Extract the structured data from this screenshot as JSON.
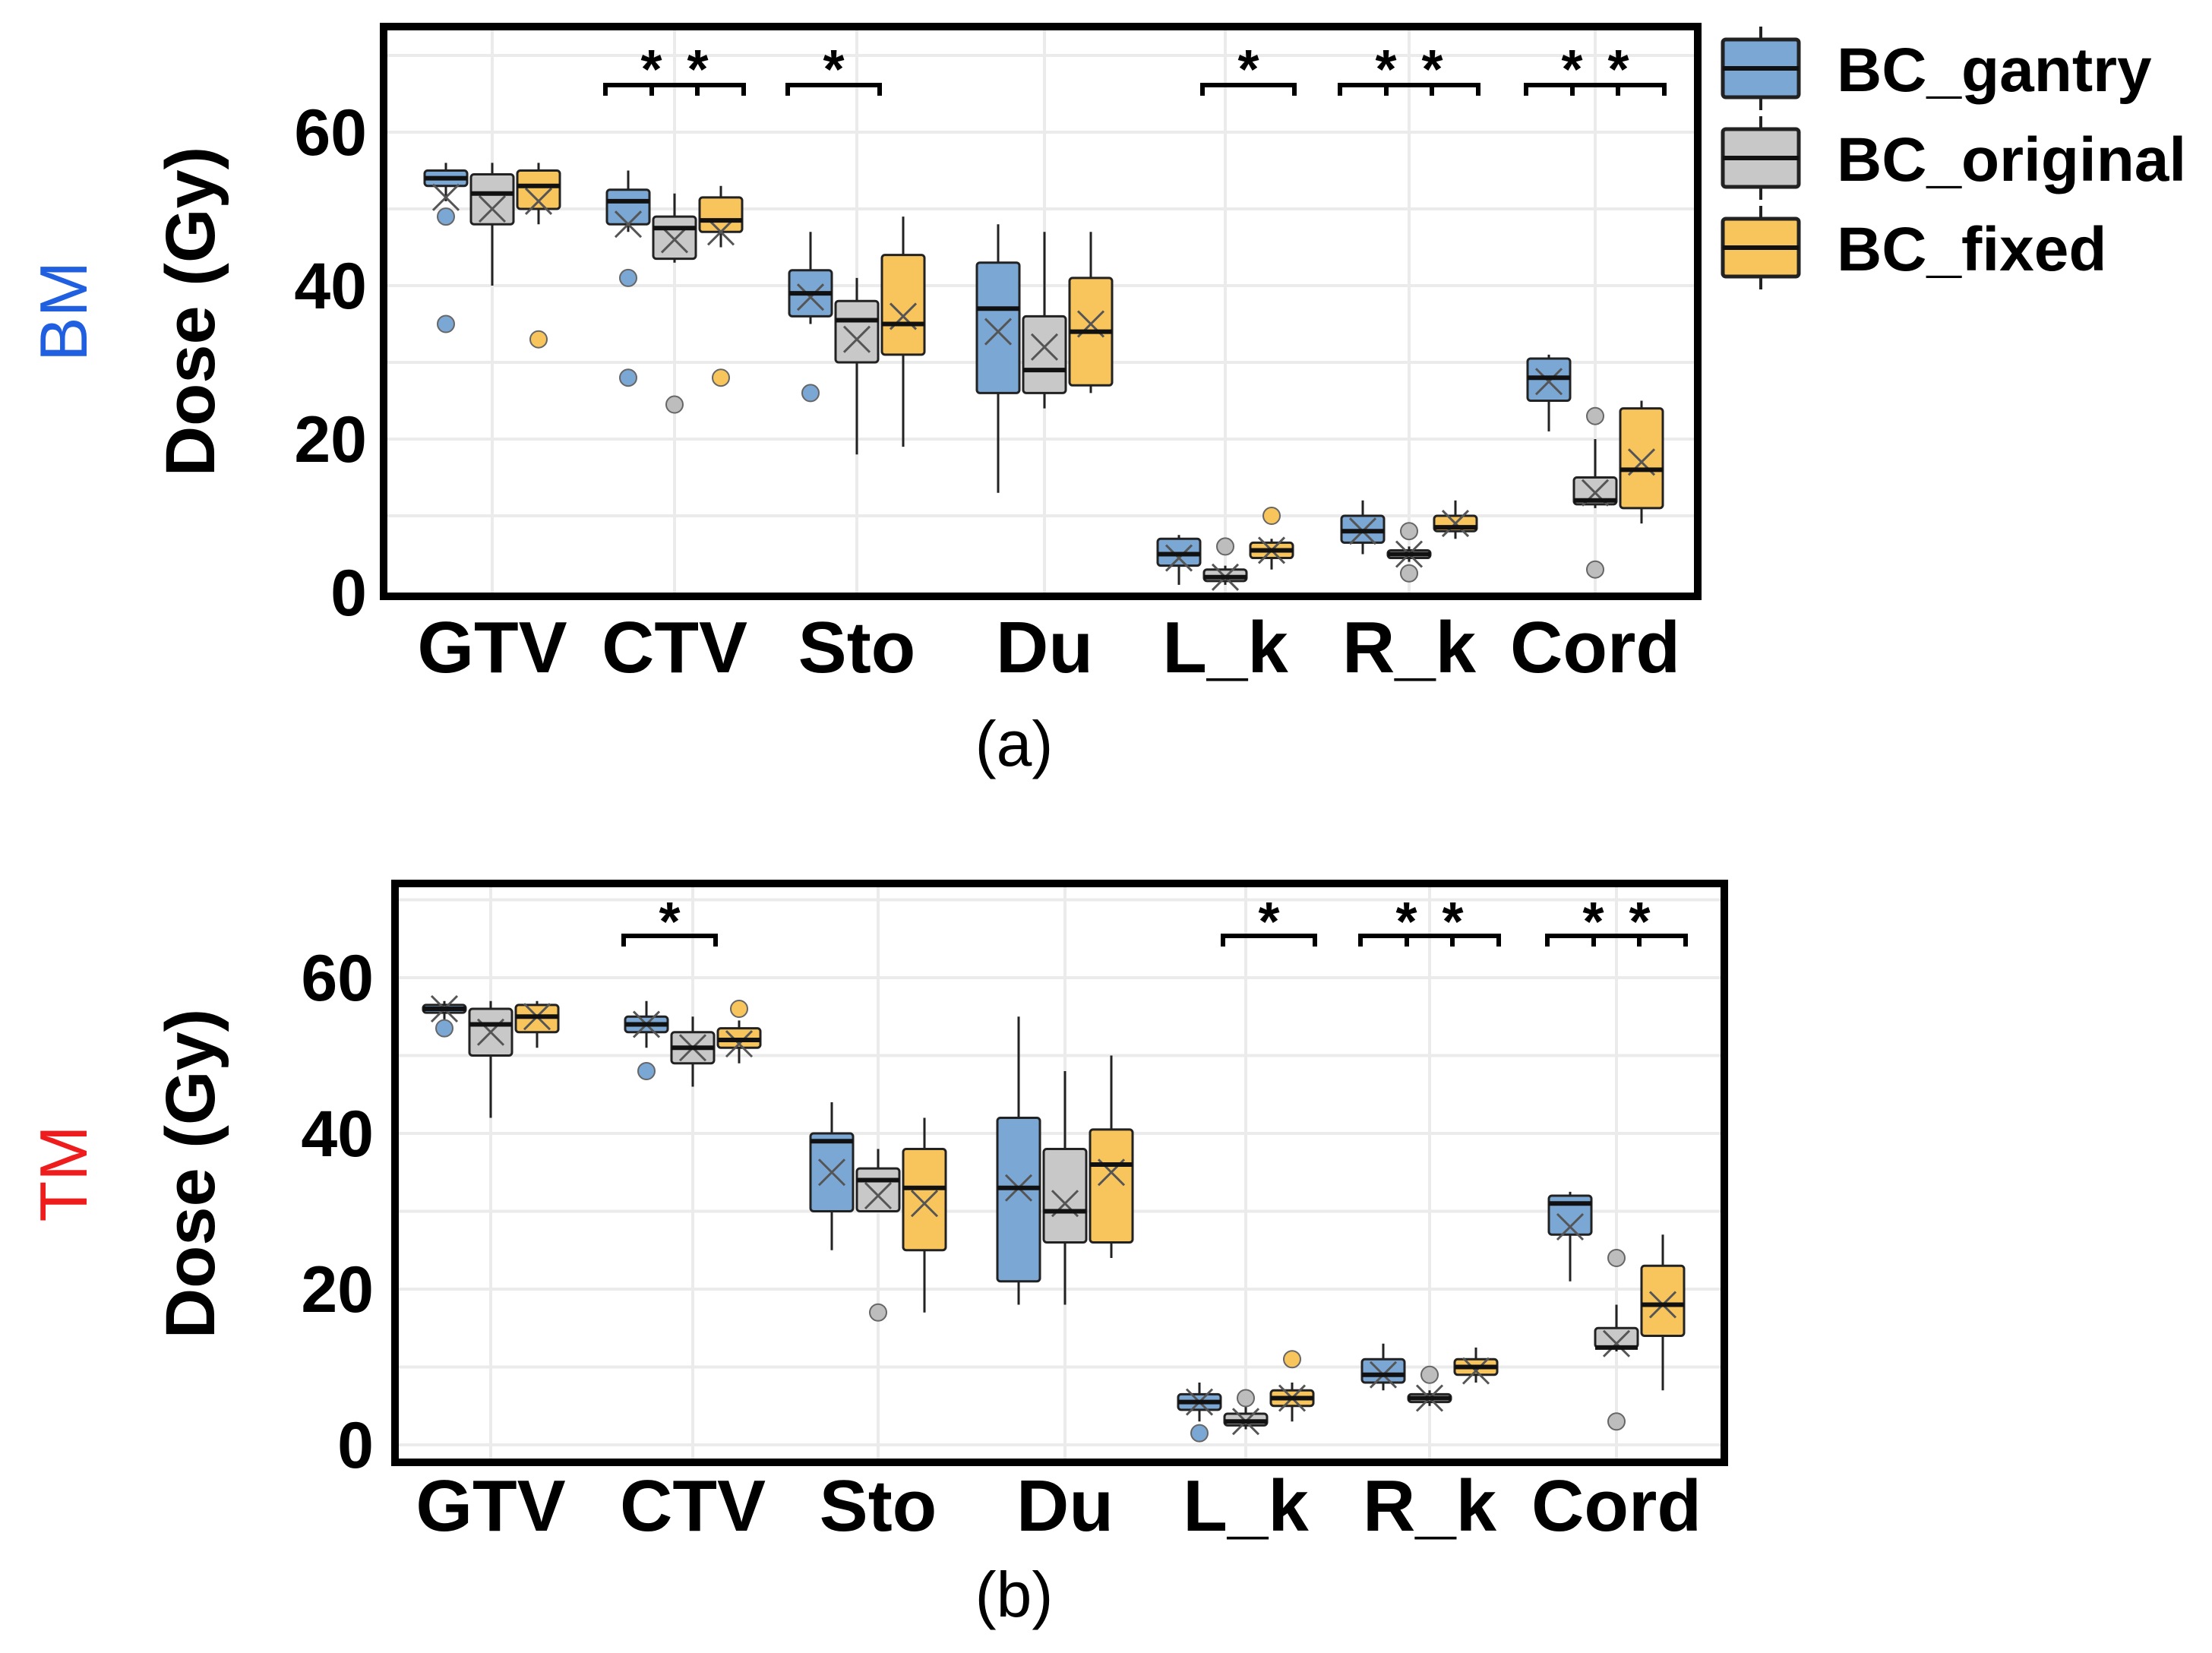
{
  "legend": {
    "items": [
      {
        "label": "BC_gantry",
        "color": "#7ba7d4"
      },
      {
        "label": "BC_original",
        "color": "#c8c8c8"
      },
      {
        "label": "BC_fixed",
        "color": "#f8c45c"
      }
    ]
  },
  "chart_data": [
    {
      "type": "box",
      "panel_label": "(a)",
      "row_label": "BM",
      "row_label_color": "#1f5fe0",
      "ylabel": "Dose (Gy)",
      "ylim": [
        0,
        72
      ],
      "yticks": [
        0,
        20,
        40,
        60
      ],
      "categories": [
        "GTV",
        "CTV",
        "Sto",
        "Du",
        "L_k",
        "R_k",
        "Cord"
      ],
      "series_names": [
        "BC_gantry",
        "BC_original",
        "BC_fixed"
      ],
      "boxes": [
        [
          {
            "min": 51,
            "q1": 53,
            "median": 54,
            "q3": 55,
            "max": 56,
            "mean": 51.5,
            "outliers": [
              49,
              35
            ]
          },
          {
            "min": 40,
            "q1": 48,
            "median": 52,
            "q3": 54.5,
            "max": 56,
            "mean": 50,
            "outliers": []
          },
          {
            "min": 48,
            "q1": 50,
            "median": 53,
            "q3": 55,
            "max": 56,
            "mean": 51,
            "outliers": [
              33
            ]
          }
        ],
        [
          {
            "min": 47,
            "q1": 48,
            "median": 51,
            "q3": 52.5,
            "max": 55,
            "mean": 48,
            "outliers": [
              41,
              28
            ]
          },
          {
            "min": 43,
            "q1": 43.5,
            "median": 47.5,
            "q3": 49,
            "max": 52,
            "mean": 46,
            "outliers": [
              24.5
            ]
          },
          {
            "min": 45,
            "q1": 47,
            "median": 48.5,
            "q3": 51.5,
            "max": 53,
            "mean": 47,
            "outliers": [
              28
            ]
          }
        ],
        [
          {
            "min": 35,
            "q1": 36,
            "median": 39,
            "q3": 42,
            "max": 47,
            "mean": 38.5,
            "outliers": [
              26
            ]
          },
          {
            "min": 18,
            "q1": 30,
            "median": 35.5,
            "q3": 38,
            "max": 41,
            "mean": 33,
            "outliers": []
          },
          {
            "min": 19,
            "q1": 31,
            "median": 35,
            "q3": 44,
            "max": 49,
            "mean": 36,
            "outliers": []
          }
        ],
        [
          {
            "min": 13,
            "q1": 26,
            "median": 37,
            "q3": 43,
            "max": 48,
            "mean": 34,
            "outliers": []
          },
          {
            "min": 24,
            "q1": 26,
            "median": 29,
            "q3": 36,
            "max": 47,
            "mean": 32,
            "outliers": []
          },
          {
            "min": 26,
            "q1": 27,
            "median": 34,
            "q3": 41,
            "max": 47,
            "mean": 35,
            "outliers": []
          }
        ],
        [
          {
            "min": 1,
            "q1": 3.5,
            "median": 5,
            "q3": 7,
            "max": 7.5,
            "mean": 4.5,
            "outliers": []
          },
          {
            "min": 1,
            "q1": 1.5,
            "median": 2,
            "q3": 3,
            "max": 3.5,
            "mean": 2,
            "outliers": [
              6
            ]
          },
          {
            "min": 3,
            "q1": 4.5,
            "median": 5.5,
            "q3": 6.5,
            "max": 7,
            "mean": 5.5,
            "outliers": [
              10
            ]
          }
        ],
        [
          {
            "min": 5,
            "q1": 6.5,
            "median": 8,
            "q3": 10,
            "max": 12,
            "mean": 8,
            "outliers": []
          },
          {
            "min": 4,
            "q1": 4.5,
            "median": 5,
            "q3": 5.5,
            "max": 6,
            "mean": 5,
            "outliers": [
              8,
              2.5
            ]
          },
          {
            "min": 7,
            "q1": 8,
            "median": 8.5,
            "q3": 10,
            "max": 12,
            "mean": 9,
            "outliers": []
          }
        ],
        [
          {
            "min": 21,
            "q1": 25,
            "median": 28,
            "q3": 30.5,
            "max": 31,
            "mean": 27.5,
            "outliers": []
          },
          {
            "min": 11,
            "q1": 11.5,
            "median": 12,
            "q3": 15,
            "max": 20,
            "mean": 13,
            "outliers": [
              23,
              3
            ]
          },
          {
            "min": 9,
            "q1": 11,
            "median": 16,
            "q3": 24,
            "max": 25,
            "mean": 17,
            "outliers": []
          }
        ]
      ],
      "significance": [
        {
          "category": "CTV",
          "pair": [
            0,
            1
          ],
          "label": "*"
        },
        {
          "category": "CTV",
          "pair": [
            1,
            2
          ],
          "label": "*"
        },
        {
          "category": "Sto",
          "pair": [
            0,
            1
          ],
          "label": "*"
        },
        {
          "category": "L_k",
          "pair": [
            1,
            2
          ],
          "label": "*"
        },
        {
          "category": "R_k",
          "pair": [
            0,
            1
          ],
          "label": "*"
        },
        {
          "category": "R_k",
          "pair": [
            1,
            2
          ],
          "label": "*"
        },
        {
          "category": "Cord",
          "pair": [
            0,
            1
          ],
          "label": "*"
        },
        {
          "category": "Cord",
          "pair": [
            1,
            2
          ],
          "label": "*"
        }
      ]
    },
    {
      "type": "box",
      "panel_label": "(b)",
      "row_label": "TM",
      "row_label_color": "#ee1c1c",
      "ylabel": "Dose (Gy)",
      "ylim": [
        0,
        72
      ],
      "yticks": [
        0,
        20,
        40,
        60
      ],
      "categories": [
        "GTV",
        "CTV",
        "Sto",
        "Du",
        "L_k",
        "R_k",
        "Cord"
      ],
      "series_names": [
        "BC_gantry",
        "BC_original",
        "BC_fixed"
      ],
      "boxes": [
        [
          {
            "min": 54,
            "q1": 55.5,
            "median": 56,
            "q3": 56.5,
            "max": 57,
            "mean": 56,
            "outliers": [
              53.5
            ]
          },
          {
            "min": 42,
            "q1": 50,
            "median": 54,
            "q3": 56,
            "max": 57,
            "mean": 53,
            "outliers": []
          },
          {
            "min": 51,
            "q1": 53,
            "median": 55,
            "q3": 56.5,
            "max": 57,
            "mean": 55,
            "outliers": []
          }
        ],
        [
          {
            "min": 51,
            "q1": 53,
            "median": 54,
            "q3": 55,
            "max": 57,
            "mean": 54,
            "outliers": [
              48
            ]
          },
          {
            "min": 46,
            "q1": 49,
            "median": 51,
            "q3": 53,
            "max": 55,
            "mean": 51,
            "outliers": []
          },
          {
            "min": 49,
            "q1": 51,
            "median": 52,
            "q3": 53.5,
            "max": 54.5,
            "mean": 51.5,
            "outliers": [
              56
            ]
          }
        ],
        [
          {
            "min": 25,
            "q1": 30,
            "median": 39,
            "q3": 40,
            "max": 44,
            "mean": 35,
            "outliers": []
          },
          {
            "min": 30,
            "q1": 30,
            "median": 34,
            "q3": 35.5,
            "max": 38,
            "mean": 32,
            "outliers": [
              17
            ]
          },
          {
            "min": 17,
            "q1": 25,
            "median": 33,
            "q3": 38,
            "max": 42,
            "mean": 31,
            "outliers": []
          }
        ],
        [
          {
            "min": 18,
            "q1": 21,
            "median": 33,
            "q3": 42,
            "max": 55,
            "mean": 33,
            "outliers": []
          },
          {
            "min": 18,
            "q1": 26,
            "median": 30,
            "q3": 38,
            "max": 48,
            "mean": 31,
            "outliers": []
          },
          {
            "min": 24,
            "q1": 26,
            "median": 36,
            "q3": 40.5,
            "max": 50,
            "mean": 35,
            "outliers": []
          }
        ],
        [
          {
            "min": 3,
            "q1": 4.5,
            "median": 5.5,
            "q3": 6.5,
            "max": 8,
            "mean": 5.5,
            "outliers": [
              1.5
            ]
          },
          {
            "min": 2,
            "q1": 2.5,
            "median": 3,
            "q3": 4,
            "max": 5,
            "mean": 3,
            "outliers": [
              6
            ]
          },
          {
            "min": 3,
            "q1": 5,
            "median": 6,
            "q3": 7,
            "max": 8,
            "mean": 6,
            "outliers": [
              11
            ]
          }
        ],
        [
          {
            "min": 7,
            "q1": 8,
            "median": 9,
            "q3": 11,
            "max": 13,
            "mean": 9,
            "outliers": []
          },
          {
            "min": 5,
            "q1": 5.5,
            "median": 6,
            "q3": 6.5,
            "max": 7,
            "mean": 6,
            "outliers": [
              9
            ]
          },
          {
            "min": 8,
            "q1": 9,
            "median": 10,
            "q3": 11,
            "max": 12.5,
            "mean": 9.5,
            "outliers": []
          }
        ],
        [
          {
            "min": 21,
            "q1": 27,
            "median": 31,
            "q3": 32,
            "max": 32.5,
            "mean": 28,
            "outliers": []
          },
          {
            "min": 12,
            "q1": 12.5,
            "median": 12.5,
            "q3": 15,
            "max": 18,
            "mean": 13,
            "outliers": [
              24,
              3
            ]
          },
          {
            "min": 7,
            "q1": 14,
            "median": 18,
            "q3": 23,
            "max": 27,
            "mean": 18,
            "outliers": []
          }
        ]
      ],
      "significance": [
        {
          "category": "CTV",
          "pair": [
            0,
            1
          ],
          "label": "*"
        },
        {
          "category": "L_k",
          "pair": [
            1,
            2
          ],
          "label": "*"
        },
        {
          "category": "R_k",
          "pair": [
            0,
            1
          ],
          "label": "*"
        },
        {
          "category": "R_k",
          "pair": [
            1,
            2
          ],
          "label": "*"
        },
        {
          "category": "Cord",
          "pair": [
            0,
            1
          ],
          "label": "*"
        },
        {
          "category": "Cord",
          "pair": [
            1,
            2
          ],
          "label": "*"
        }
      ]
    }
  ]
}
